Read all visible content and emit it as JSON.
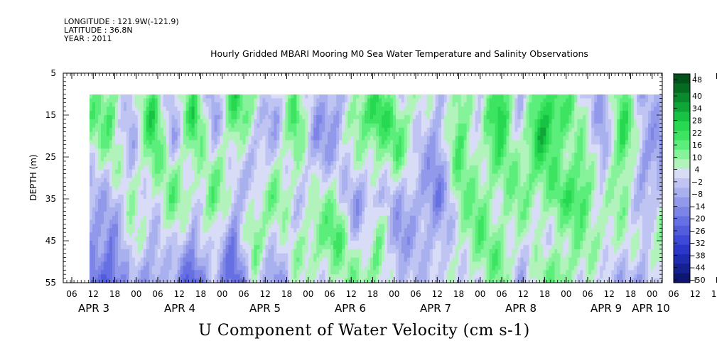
{
  "header": {
    "longitude": "LONGITUDE : 121.9W(-121.9)",
    "latitude": "LATITUDE : 36.8N",
    "year": "YEAR : 2011"
  },
  "chart_data": {
    "type": "heatmap",
    "title": "Hourly Gridded MBARI Mooring M0 Sea Water Temperature and Salinity Observations",
    "bottom_title": "U Component of Water Velocity (cm s-1)",
    "ylabel": "DEPTH (m)",
    "y_ticks": [
      5,
      15,
      25,
      35,
      45,
      55
    ],
    "ylim": [
      5,
      55
    ],
    "y_reversed": true,
    "data_depth_range": [
      10,
      55
    ],
    "x_tick_labels": [
      "06",
      "12",
      "18",
      "00",
      "06",
      "12",
      "18",
      "00",
      "06",
      "12",
      "18",
      "00",
      "06",
      "12",
      "18",
      "00",
      "06",
      "12",
      "18",
      "00",
      "06",
      "12",
      "18",
      "00",
      "06",
      "12",
      "18",
      "00",
      "06",
      "12",
      "18",
      "00"
    ],
    "x_day_labels": [
      "APR  3",
      "APR  4",
      "APR  5",
      "APR  6",
      "APR  7",
      "APR  8",
      "APR  9",
      "APR 10"
    ],
    "colorbar": {
      "labels": [
        "48",
        "40",
        "34",
        "28",
        "22",
        "16",
        "10",
        "4",
        "-2",
        "-8",
        "-14",
        "-20",
        "-26",
        "-32",
        "-38",
        "-44",
        "-50"
      ],
      "colors": [
        "#04521b",
        "#066b22",
        "#0a8a2c",
        "#0fa638",
        "#18c244",
        "#27d851",
        "#3de462",
        "#5cee7a",
        "#86f39a",
        "#b1f3bb",
        "#d8dcf6",
        "#bfc4f2",
        "#a9b0ee",
        "#9299ea",
        "#7c84e6",
        "#6670e2",
        "#515ddd",
        "#3c4ad7",
        "#2a37c9",
        "#1e2bb0",
        "#152091",
        "#0d1670"
      ]
    },
    "columns_data": [
      {
        "time_hours": 0,
        "profile": [
          8,
          12,
          10,
          4,
          -4,
          -8,
          -10,
          -12,
          -14,
          -18
        ]
      },
      {
        "time_hours": 6,
        "profile": [
          12,
          14,
          10,
          6,
          2,
          -4,
          -10,
          -16,
          -20,
          -26
        ]
      },
      {
        "time_hours": 12,
        "profile": [
          -6,
          -8,
          -6,
          -4,
          0,
          4,
          6,
          8,
          2,
          -4
        ]
      },
      {
        "time_hours": 18,
        "profile": [
          18,
          24,
          20,
          14,
          8,
          2,
          -4,
          -8,
          -10,
          -12
        ]
      },
      {
        "time_hours": 24,
        "profile": [
          -4,
          -6,
          -8,
          0,
          8,
          14,
          10,
          4,
          -2,
          -6
        ]
      },
      {
        "time_hours": 30,
        "profile": [
          16,
          22,
          18,
          10,
          4,
          0,
          -6,
          -12,
          -18,
          -26
        ]
      },
      {
        "time_hours": 36,
        "profile": [
          -8,
          -10,
          -6,
          2,
          10,
          16,
          12,
          6,
          0,
          -6
        ]
      },
      {
        "time_hours": 42,
        "profile": [
          20,
          18,
          12,
          6,
          0,
          -6,
          -12,
          -18,
          -20,
          -22
        ]
      },
      {
        "time_hours": 48,
        "profile": [
          8,
          2,
          -4,
          -8,
          -4,
          4,
          10,
          14,
          8,
          0
        ]
      },
      {
        "time_hours": 54,
        "profile": [
          -6,
          -10,
          -4,
          2,
          8,
          12,
          6,
          0,
          -6,
          -12
        ]
      },
      {
        "time_hours": 60,
        "profile": [
          14,
          18,
          14,
          8,
          4,
          0,
          -2,
          2,
          6,
          4
        ]
      },
      {
        "time_hours": 66,
        "profile": [
          -4,
          -8,
          -12,
          -8,
          -2,
          4,
          10,
          12,
          6,
          0
        ]
      },
      {
        "time_hours": 72,
        "profile": [
          -10,
          -12,
          -8,
          -4,
          2,
          8,
          12,
          16,
          12,
          6
        ]
      },
      {
        "time_hours": 78,
        "profile": [
          10,
          14,
          8,
          2,
          -6,
          -12,
          -8,
          -2,
          4,
          8
        ]
      },
      {
        "time_hours": 84,
        "profile": [
          18,
          24,
          16,
          8,
          2,
          -4,
          4,
          10,
          14,
          10
        ]
      },
      {
        "time_hours": 90,
        "profile": [
          4,
          10,
          14,
          12,
          4,
          -4,
          -10,
          -14,
          -10,
          -6
        ]
      },
      {
        "time_hours": 96,
        "profile": [
          6,
          4,
          0,
          -4,
          -6,
          -8,
          -6,
          -4,
          -2,
          -4
        ]
      },
      {
        "time_hours": 102,
        "profile": [
          -6,
          -8,
          -10,
          -12,
          -14,
          -16,
          -12,
          -8,
          -4,
          0
        ]
      },
      {
        "time_hours": 108,
        "profile": [
          14,
          16,
          18,
          16,
          12,
          8,
          6,
          4,
          2,
          0
        ]
      },
      {
        "time_hours": 114,
        "profile": [
          -4,
          -2,
          0,
          4,
          8,
          12,
          14,
          12,
          8,
          4
        ]
      },
      {
        "time_hours": 120,
        "profile": [
          28,
          30,
          22,
          14,
          8,
          4,
          6,
          10,
          14,
          10
        ]
      },
      {
        "time_hours": 126,
        "profile": [
          -10,
          -6,
          2,
          8,
          12,
          10,
          6,
          2,
          -2,
          -6
        ]
      },
      {
        "time_hours": 132,
        "profile": [
          20,
          24,
          28,
          20,
          14,
          8,
          4,
          0,
          4,
          8
        ]
      },
      {
        "time_hours": 138,
        "profile": [
          18,
          22,
          14,
          8,
          12,
          16,
          10,
          6,
          12,
          14
        ]
      },
      {
        "time_hours": 144,
        "profile": [
          0,
          4,
          8,
          14,
          18,
          20,
          14,
          8,
          4,
          0
        ]
      },
      {
        "time_hours": 150,
        "profile": [
          -8,
          -10,
          -12,
          -8,
          -4,
          0,
          4,
          8,
          4,
          0
        ]
      },
      {
        "time_hours": 156,
        "profile": [
          14,
          20,
          24,
          20,
          14,
          10,
          6,
          2,
          -2,
          -6
        ]
      },
      {
        "time_hours": 162,
        "profile": [
          -6,
          -4,
          -8,
          -12,
          -10,
          -6,
          -2,
          2,
          -4,
          -12
        ]
      },
      {
        "time_hours": 168,
        "profile": [
          -4,
          -8,
          -12,
          -10,
          -6,
          -2,
          4,
          8,
          12,
          10
        ]
      }
    ]
  }
}
